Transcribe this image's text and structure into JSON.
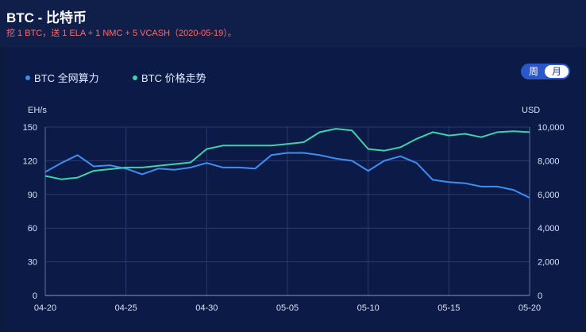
{
  "header": {
    "title": "BTC - 比特币",
    "subtitle": "挖 1 BTC，送 1 ELA + 1 NMC + 5 VCASH（2020-05-19）。"
  },
  "toggle": {
    "week_label": "周",
    "month_label": "月",
    "selected": "月"
  },
  "colors": {
    "hashrate": "#3d8ef0",
    "price": "#3fd2a8",
    "background": "#0c1a48"
  },
  "chart_data": {
    "type": "line",
    "x_ticks": [
      "04-20",
      "04-25",
      "04-30",
      "05-05",
      "05-10",
      "05-15",
      "05-20"
    ],
    "y_left": {
      "unit": "EH/s",
      "min": 0,
      "max": 150,
      "ticks": [
        "0",
        "30",
        "60",
        "90",
        "120",
        "150"
      ]
    },
    "y_right": {
      "unit": "USD",
      "min": 0,
      "max": 10000,
      "ticks": [
        "0",
        "2,000",
        "4,000",
        "6,000",
        "8,000",
        "10,000"
      ]
    },
    "grid": true,
    "legend_position": "top-left",
    "series": [
      {
        "name": "BTC 全网算力",
        "axis": "left",
        "color": "#3d8ef0",
        "x": [
          "04-20",
          "04-21",
          "04-22",
          "04-23",
          "04-24",
          "04-25",
          "04-26",
          "04-27",
          "04-28",
          "04-29",
          "04-30",
          "05-01",
          "05-02",
          "05-03",
          "05-04",
          "05-05",
          "05-06",
          "05-07",
          "05-08",
          "05-09",
          "05-10",
          "05-11",
          "05-12",
          "05-13",
          "05-14",
          "05-15",
          "05-16",
          "05-17",
          "05-18",
          "05-19",
          "05-20"
        ],
        "values": [
          110,
          118,
          125,
          115,
          116,
          113,
          108,
          113,
          112,
          114,
          118,
          114,
          114,
          113,
          125,
          127,
          127,
          125,
          122,
          120,
          111,
          120,
          124,
          118,
          103,
          101,
          100,
          97,
          97,
          94,
          87
        ]
      },
      {
        "name": "BTC 价格走势",
        "axis": "right",
        "color": "#3fd2a8",
        "x": [
          "04-20",
          "04-21",
          "04-22",
          "04-23",
          "04-24",
          "04-25",
          "04-26",
          "04-27",
          "04-28",
          "04-29",
          "04-30",
          "05-01",
          "05-02",
          "05-03",
          "05-04",
          "05-05",
          "05-06",
          "05-07",
          "05-08",
          "05-09",
          "05-10",
          "05-11",
          "05-12",
          "05-13",
          "05-14",
          "05-15",
          "05-16",
          "05-17",
          "05-18",
          "05-19",
          "05-20"
        ],
        "values": [
          7100,
          6900,
          7000,
          7400,
          7500,
          7600,
          7600,
          7700,
          7800,
          7900,
          8700,
          8900,
          8900,
          8900,
          8900,
          9000,
          9100,
          9700,
          9900,
          9800,
          8700,
          8600,
          8800,
          9300,
          9700,
          9500,
          9600,
          9400,
          9700,
          9750,
          9700
        ]
      }
    ]
  }
}
